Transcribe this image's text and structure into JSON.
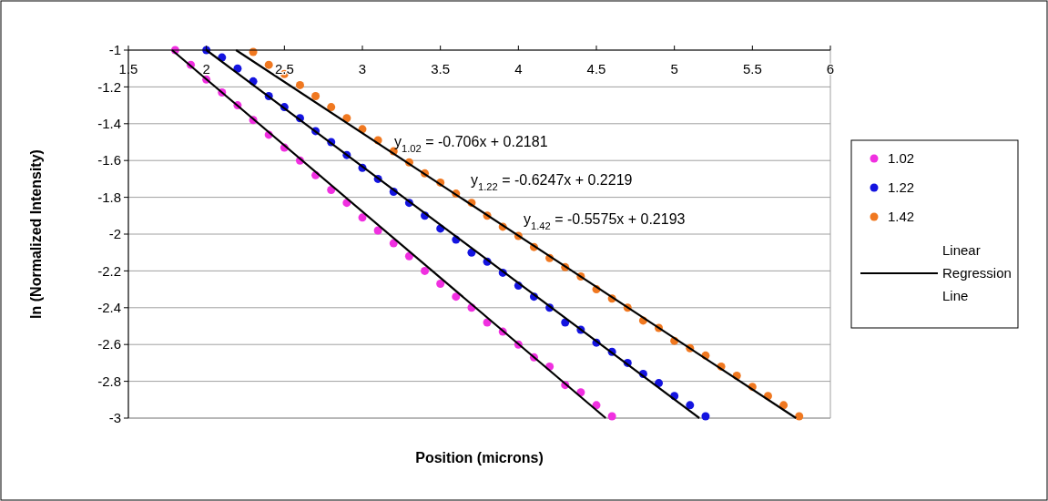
{
  "chart_data": {
    "type": "scatter",
    "xlabel": "Position (microns)",
    "ylabel": "ln (Normalized Intensity)",
    "xlim": [
      1.5,
      6
    ],
    "xticks": [
      1.5,
      2,
      2.5,
      3,
      3.5,
      4,
      4.5,
      5,
      5.5,
      6
    ],
    "ylim": [
      -3,
      -1
    ],
    "yticks": [
      -1,
      -1.2,
      -1.4,
      -1.6,
      -1.8,
      -2,
      -2.2,
      -2.4,
      -2.6,
      -2.8,
      -3
    ],
    "grid": "y",
    "legend": "right",
    "marker": "circle",
    "annotations": [
      "y$_{1.02}$ = -0.706x + 0.2181",
      "y$_{1.22}$ = -0.6247x + 0.2219",
      "y$_{1.42}$ = -0.5575x + 0.2193"
    ],
    "series": [
      {
        "name": "1.02",
        "color": "#f030e0",
        "x": [
          1.8,
          1.9,
          2.0,
          2.1,
          2.2,
          2.3,
          2.4,
          2.5,
          2.6,
          2.7,
          2.8,
          2.9,
          3.0,
          3.1,
          3.2,
          3.3,
          3.4,
          3.5,
          3.6,
          3.7,
          3.8,
          3.9,
          4.0,
          4.1,
          4.2,
          4.3,
          4.4,
          4.5,
          4.6
        ],
        "values": [
          -1.0,
          -1.08,
          -1.16,
          -1.23,
          -1.3,
          -1.38,
          -1.46,
          -1.53,
          -1.6,
          -1.68,
          -1.76,
          -1.83,
          -1.91,
          -1.98,
          -2.05,
          -2.12,
          -2.2,
          -2.27,
          -2.34,
          -2.4,
          -2.48,
          -2.53,
          -2.6,
          -2.67,
          -2.72,
          -2.82,
          -2.86,
          -2.93,
          -2.99
        ]
      },
      {
        "name": "1.22",
        "color": "#1414e0",
        "x": [
          2.0,
          2.1,
          2.2,
          2.3,
          2.4,
          2.5,
          2.6,
          2.7,
          2.8,
          2.9,
          3.0,
          3.1,
          3.2,
          3.3,
          3.4,
          3.5,
          3.6,
          3.7,
          3.8,
          3.9,
          4.0,
          4.1,
          4.2,
          4.3,
          4.4,
          4.5,
          4.6,
          4.7,
          4.8,
          4.9,
          5.0,
          5.1,
          5.2
        ],
        "values": [
          -1.0,
          -1.04,
          -1.1,
          -1.17,
          -1.25,
          -1.31,
          -1.37,
          -1.44,
          -1.5,
          -1.57,
          -1.64,
          -1.7,
          -1.77,
          -1.83,
          -1.9,
          -1.97,
          -2.03,
          -2.1,
          -2.15,
          -2.21,
          -2.28,
          -2.34,
          -2.4,
          -2.48,
          -2.52,
          -2.59,
          -2.64,
          -2.7,
          -2.76,
          -2.81,
          -2.88,
          -2.93,
          -2.99
        ]
      },
      {
        "name": "1.42",
        "color": "#f07820",
        "x": [
          2.3,
          2.4,
          2.5,
          2.6,
          2.7,
          2.8,
          2.9,
          3.0,
          3.1,
          3.2,
          3.3,
          3.4,
          3.5,
          3.6,
          3.7,
          3.8,
          3.9,
          4.0,
          4.1,
          4.2,
          4.3,
          4.4,
          4.5,
          4.6,
          4.7,
          4.8,
          4.9,
          5.0,
          5.1,
          5.2,
          5.3,
          5.4,
          5.5,
          5.6,
          5.7,
          5.8
        ],
        "values": [
          -1.01,
          -1.08,
          -1.13,
          -1.19,
          -1.25,
          -1.31,
          -1.37,
          -1.43,
          -1.49,
          -1.55,
          -1.61,
          -1.67,
          -1.72,
          -1.78,
          -1.83,
          -1.9,
          -1.96,
          -2.01,
          -2.07,
          -2.13,
          -2.18,
          -2.23,
          -2.3,
          -2.35,
          -2.4,
          -2.47,
          -2.51,
          -2.58,
          -2.62,
          -2.66,
          -2.72,
          -2.77,
          -2.83,
          -2.88,
          -2.93,
          -2.99
        ]
      },
      {
        "type": "line",
        "name": "Linear Regression Line",
        "color": "#000000",
        "marker": "none",
        "x": [
          1.78,
          4.56
        ],
        "values": [
          -1,
          -3
        ]
      },
      {
        "type": "line",
        "color": "#000000",
        "marker": "none",
        "x": [
          2.0,
          5.16
        ],
        "values": [
          -1,
          -3
        ]
      },
      {
        "type": "line",
        "color": "#000000",
        "marker": "none",
        "x": [
          2.19,
          5.78
        ],
        "values": [
          -1,
          -3
        ]
      }
    ]
  }
}
